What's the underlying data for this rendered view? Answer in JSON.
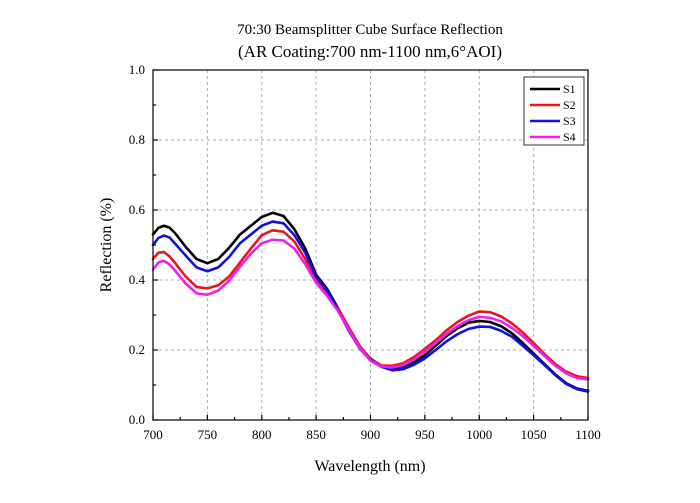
{
  "chart_data": {
    "type": "line",
    "title": "70:30 Beamsplitter Cube Surface Reflection",
    "subtitle": "(AR Coating:700 nm-1100 nm,6°AOI)",
    "xlabel": "Wavelength (nm)",
    "ylabel": "Reflection (%)",
    "xlim": [
      700,
      1100
    ],
    "ylim": [
      0.0,
      1.0
    ],
    "xticks": [
      700,
      750,
      800,
      850,
      900,
      950,
      1000,
      1050,
      1100
    ],
    "xtick_labels": [
      "700",
      "750",
      "800",
      "850",
      "900",
      "950",
      "1000",
      "1050",
      "1100"
    ],
    "yticks": [
      0.0,
      0.2,
      0.4,
      0.6,
      0.8,
      1.0
    ],
    "ytick_labels": [
      "0.0",
      "0.2",
      "0.4",
      "0.6",
      "0.8",
      "1.0"
    ],
    "grid": true,
    "legend_position": "top-right",
    "x": [
      700,
      705,
      710,
      715,
      720,
      730,
      740,
      750,
      760,
      770,
      780,
      790,
      800,
      810,
      820,
      830,
      840,
      850,
      860,
      870,
      880,
      890,
      900,
      910,
      920,
      930,
      940,
      950,
      960,
      970,
      980,
      990,
      1000,
      1010,
      1020,
      1030,
      1040,
      1050,
      1060,
      1070,
      1080,
      1090,
      1100
    ],
    "series": [
      {
        "name": "S1",
        "color": "#000000",
        "values": [
          0.53,
          0.549,
          0.555,
          0.55,
          0.535,
          0.495,
          0.46,
          0.448,
          0.46,
          0.492,
          0.53,
          0.555,
          0.58,
          0.592,
          0.583,
          0.545,
          0.49,
          0.415,
          0.375,
          0.32,
          0.26,
          0.21,
          0.175,
          0.155,
          0.148,
          0.152,
          0.165,
          0.185,
          0.212,
          0.24,
          0.262,
          0.278,
          0.283,
          0.28,
          0.268,
          0.248,
          0.22,
          0.19,
          0.16,
          0.13,
          0.105,
          0.09,
          0.083
        ]
      },
      {
        "name": "S2",
        "color": "#e8161e",
        "values": [
          0.46,
          0.478,
          0.48,
          0.468,
          0.45,
          0.41,
          0.38,
          0.376,
          0.385,
          0.41,
          0.45,
          0.49,
          0.528,
          0.542,
          0.538,
          0.51,
          0.46,
          0.4,
          0.36,
          0.32,
          0.265,
          0.212,
          0.173,
          0.156,
          0.155,
          0.162,
          0.18,
          0.203,
          0.228,
          0.256,
          0.28,
          0.298,
          0.31,
          0.308,
          0.296,
          0.276,
          0.25,
          0.22,
          0.188,
          0.16,
          0.138,
          0.125,
          0.12
        ]
      },
      {
        "name": "S3",
        "color": "#1010e0",
        "values": [
          0.5,
          0.52,
          0.527,
          0.522,
          0.505,
          0.47,
          0.436,
          0.425,
          0.436,
          0.466,
          0.505,
          0.53,
          0.555,
          0.567,
          0.562,
          0.528,
          0.478,
          0.41,
          0.37,
          0.315,
          0.255,
          0.205,
          0.17,
          0.152,
          0.142,
          0.145,
          0.158,
          0.176,
          0.2,
          0.225,
          0.245,
          0.26,
          0.267,
          0.266,
          0.255,
          0.238,
          0.212,
          0.185,
          0.157,
          0.128,
          0.103,
          0.088,
          0.081
        ]
      },
      {
        "name": "S4",
        "color": "#f01ef0",
        "values": [
          0.43,
          0.45,
          0.455,
          0.445,
          0.428,
          0.39,
          0.362,
          0.358,
          0.37,
          0.398,
          0.438,
          0.475,
          0.505,
          0.515,
          0.513,
          0.49,
          0.445,
          0.392,
          0.355,
          0.312,
          0.258,
          0.207,
          0.169,
          0.153,
          0.15,
          0.157,
          0.173,
          0.196,
          0.22,
          0.246,
          0.268,
          0.285,
          0.295,
          0.292,
          0.282,
          0.263,
          0.24,
          0.212,
          0.183,
          0.155,
          0.133,
          0.12,
          0.116
        ]
      }
    ]
  }
}
